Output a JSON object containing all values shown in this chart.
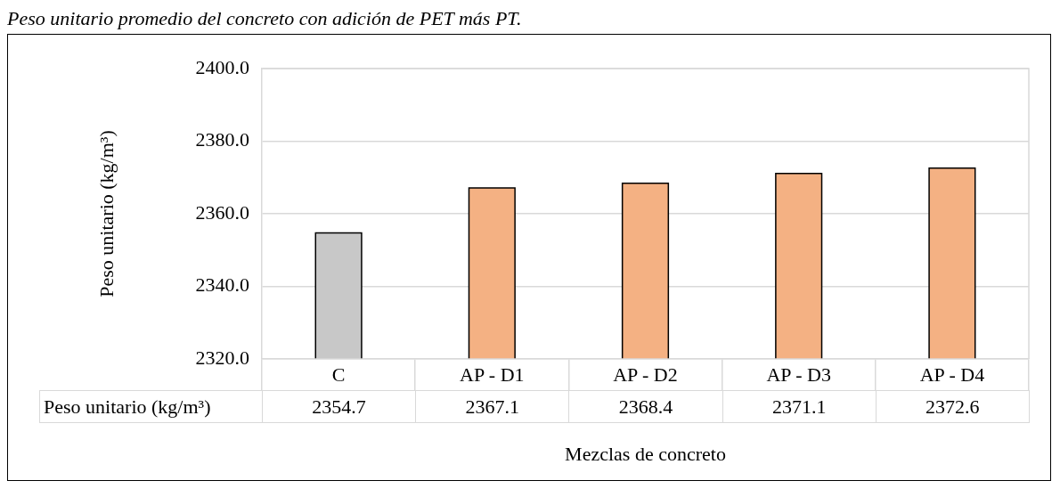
{
  "chart_data": {
    "type": "bar",
    "title": "Peso unitario promedio del concreto con adición de PET más PT.",
    "xlabel": "Mezclas de concreto",
    "ylabel": "Peso unitario (kg/m³)",
    "categories": [
      "C",
      "AP - D1",
      "AP - D2",
      "AP - D3",
      "AP - D4"
    ],
    "series": [
      {
        "name": "Peso unitario (kg/m³)",
        "colors": [
          "#c8c8c8",
          "#f4b183",
          "#f4b183",
          "#f4b183",
          "#f4b183"
        ],
        "values": [
          2354.7,
          2367.1,
          2368.4,
          2371.1,
          2372.6
        ]
      }
    ],
    "ylim": [
      2320,
      2400
    ],
    "yticks": [
      {
        "value": 2320,
        "label": "2320.0"
      },
      {
        "value": 2340,
        "label": "2340.0"
      },
      {
        "value": 2360,
        "label": "2360.0"
      },
      {
        "value": 2380,
        "label": "2380.0"
      },
      {
        "value": 2400,
        "label": "2400.0"
      }
    ],
    "grid": "y",
    "data_labels": true
  }
}
